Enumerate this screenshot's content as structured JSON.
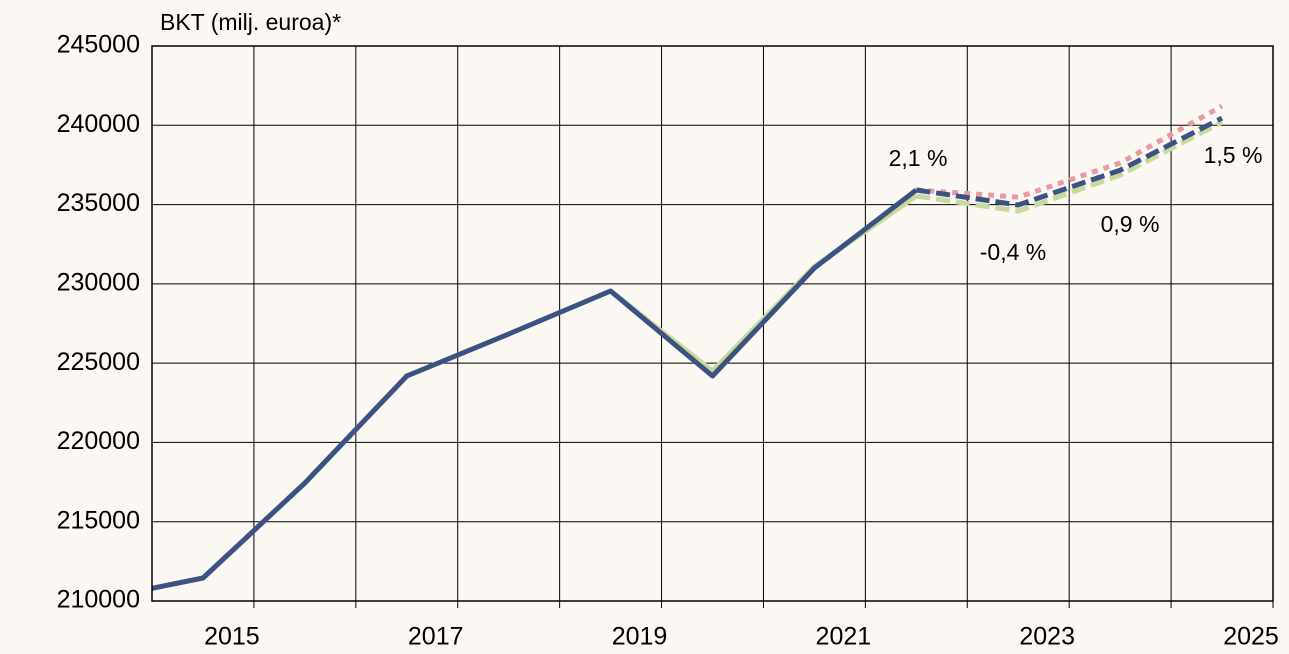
{
  "chart_data": {
    "type": "line",
    "title": "BKT (milj. euroa)*",
    "x": [
      2014,
      2014.5,
      2015.5,
      2016.5,
      2017.5,
      2018.5,
      2019.5,
      2020.5,
      2021.5,
      2022.5,
      2023.5,
      2024.5
    ],
    "series": [
      {
        "color": "#c9d89c",
        "dash": "solid",
        "values": [
          210800,
          211450,
          217440,
          224190,
          226840,
          229550,
          224500,
          231100,
          235540,
          null,
          null,
          null
        ]
      },
      {
        "color": "#c9d89c",
        "dash": "dashed",
        "values": [
          null,
          null,
          null,
          null,
          null,
          null,
          null,
          null,
          235540,
          234590,
          236860,
          240200
        ]
      },
      {
        "color": "#e99aa2",
        "dash": "dotted",
        "values": [
          null,
          null,
          null,
          null,
          null,
          null,
          null,
          null,
          235920,
          235470,
          237620,
          241210
        ]
      },
      {
        "color": "#3b5283",
        "dash": "solid",
        "values": [
          210800,
          211450,
          217440,
          224190,
          226840,
          229550,
          224190,
          231000,
          235920,
          null,
          null,
          null
        ]
      },
      {
        "color": "#3b5283",
        "dash": "dashed",
        "values": [
          null,
          null,
          null,
          null,
          null,
          null,
          null,
          null,
          235920,
          234970,
          237170,
          240450
        ]
      }
    ],
    "annotations": [
      "2,1 %",
      "-0,4 %",
      "0,9 %",
      "1,5 %"
    ],
    "xlim": [
      2014,
      2025
    ],
    "xticks": [
      2015,
      2017,
      2019,
      2021,
      2023,
      2025
    ],
    "x_minor_ticks": [
      2016,
      2018,
      2020,
      2022,
      2024
    ],
    "ylim": [
      210000,
      245000
    ],
    "yticks": [
      210000,
      215000,
      220000,
      225000,
      230000,
      235000,
      240000,
      245000
    ],
    "grid": true
  }
}
